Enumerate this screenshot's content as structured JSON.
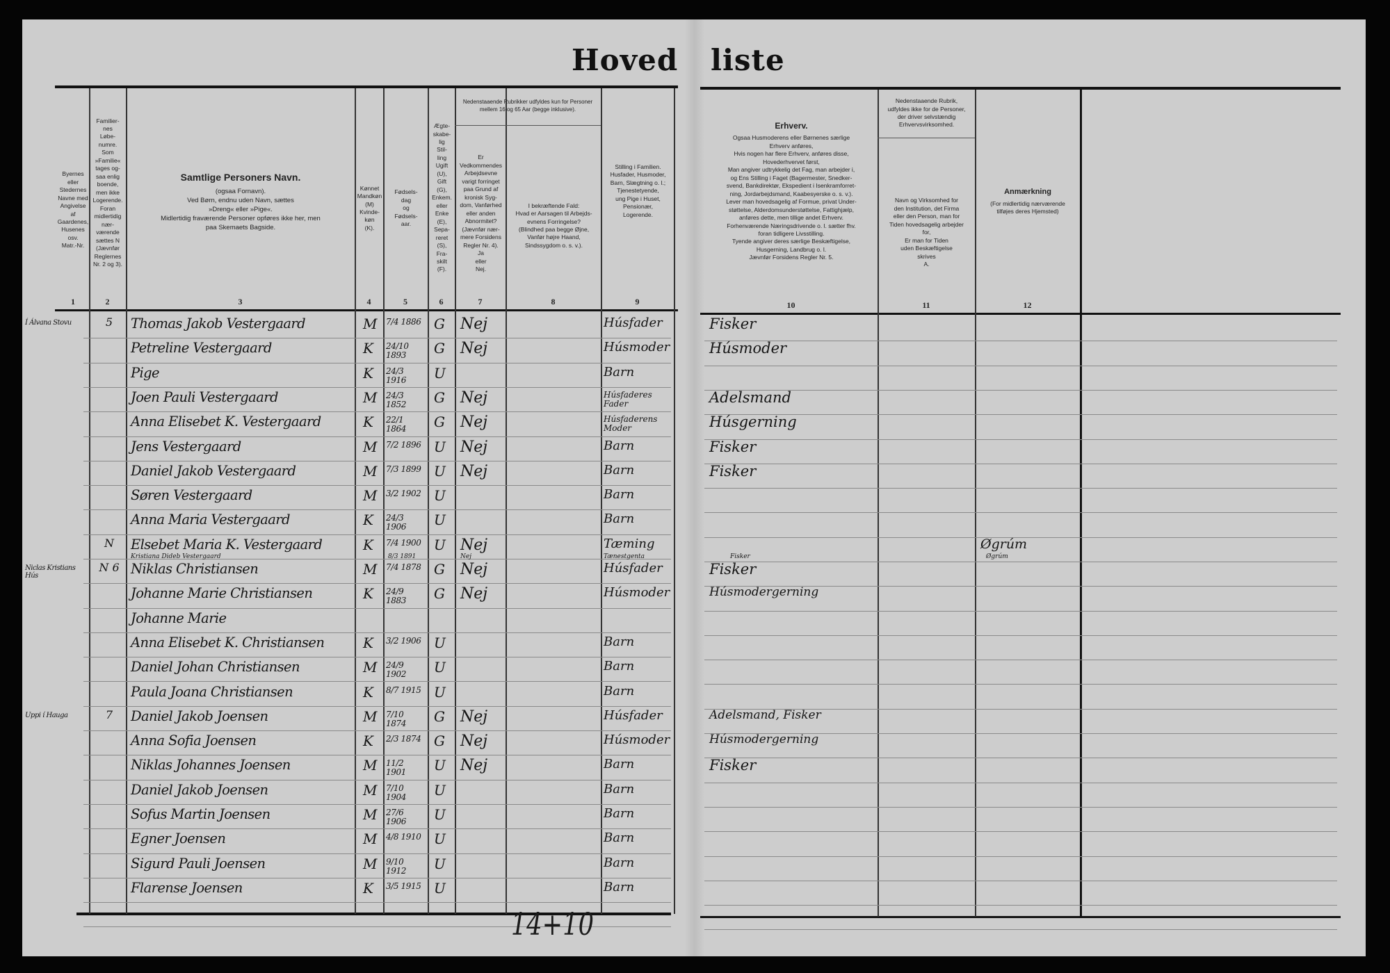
{
  "title": {
    "left": "Hoved",
    "right": "liste"
  },
  "headers": {
    "col1": [
      "Byernes",
      "eller",
      "Stedernes",
      "Navne med",
      "Angivelse",
      "af",
      "Gaardenes,",
      "Husenes osv.",
      "Matr.-Nr."
    ],
    "col2": [
      "Familier-",
      "nes",
      "Løbe-",
      "numre.",
      "Som",
      "»Familie«",
      "tages og-",
      "saa enlig",
      "boende,",
      "men ikke",
      "Logerende.",
      "Foran",
      "midlertidig",
      "nær-",
      "værende",
      "sættes N",
      "(Jævnfør",
      "Reglernes",
      "Nr. 2 og 3)."
    ],
    "col3_title": "Samtlige Personers Navn.",
    "col3_lines": [
      "(ogsaa Fornavn).",
      "Ved Børn, endnu uden Navn, sættes",
      "»Dreng« eller »Pige«.",
      "Midlertidig fraværende Personer opføres ikke her, men",
      "paa Skemaets Bagside."
    ],
    "col4": [
      "Kønnet",
      "Mandkøn",
      "(M)",
      "Kvinde-",
      "køn",
      "(K)."
    ],
    "col5": [
      "Fødsels-",
      "dag",
      "og",
      "Fødsels-",
      "aar."
    ],
    "col6": [
      "Ægte-",
      "skabe-",
      "lig",
      "Stil-",
      "ling",
      "Ugift",
      "(U),",
      "Gift",
      "(G),",
      "Enkem.",
      "eller",
      "Enke",
      "(E),",
      "Sepa-",
      "reret",
      "(S),",
      "Fra-",
      "skilt",
      "(F)."
    ],
    "col78_top": "Nedenstaaende Rubrikker udfyldes kun for Personer mellem 16 og 65 Aar (begge inklusive).",
    "col7": [
      "Er",
      "Vedkommendes",
      "Arbejdsevne",
      "varigt forringet",
      "paa Grund af",
      "kronisk Syg-",
      "dom, Vanførhed",
      "eller anden",
      "Abnormitet?",
      "(Jævnfør nær-",
      "mere Forsidens",
      "Regler Nr. 4).",
      "Ja",
      "eller",
      "Nej."
    ],
    "col8": [
      "I bekræftende Fald:",
      "Hvad er Aarsagen til Arbejds-",
      "evnens Forringelse?",
      "(Blindhed paa begge Øjne,",
      "Vanfør højre Haand,",
      "Sindssygdom o. s. v.)."
    ],
    "col9": [
      "Stilling i Familien.",
      "Husfader, Husmoder,",
      "Barn, Slægtning o. l.;",
      "Tjenestetyende,",
      "ung Pige i Huset,",
      "Pensionær,",
      "Logerende."
    ],
    "col10_title": "Erhverv.",
    "col10": [
      "Ogsaa Husmoderens eller Børnenes særlige",
      "Erhverv anføres,",
      "Hvis nogen har flere Erhverv, anføres disse,",
      "Hovederhvervet først,",
      "Man angiver udtrykkelig det Fag, man arbejder i,",
      "og Ens Stilling i Faget (Bagermester, Snedker-",
      "svend, Bankdirektør, Ekspedient i Isenkramforret-",
      "ning, Jordarbejdsmand, Kaabesyerske o. s. v.).",
      "Lever man hovedsagelig af Formue, privat Under-",
      "støttelse, Alderdomsunderstøttelse, Fattighjælp,",
      "anføres dette, men tillige andet Erhverv.",
      "Forhenværende Næringsdrivende o. l. sætter fhv.",
      "foran tidligere Livsstilling.",
      "Tyende angiver deres særlige Beskæftigelse,",
      "Husgerning, Landbrug o. l.",
      "Jævnfør Forsidens Regler Nr. 5."
    ],
    "col11_top": [
      "Nedenstaaende Rubrik,",
      "udfyldes ikke for de Personer,",
      "der driver selvstændig",
      "Erhvervsvirksomhed."
    ],
    "col11": [
      "Navn og Virksomhed for",
      "den Institution, det Firma",
      "eller den Person, man for",
      "Tiden hovedsagelig arbejder",
      "for,",
      "Er man for Tiden",
      "uden Beskæftigelse",
      "skrives",
      "A."
    ],
    "col12_title": "Anmærkning",
    "col12": [
      "(For midlertidig nærværende",
      "tilføjes deres Hjemsted)"
    ],
    "numbers": [
      "1",
      "2",
      "3",
      "4",
      "5",
      "6",
      "7",
      "8",
      "9",
      "10",
      "11",
      "12"
    ]
  },
  "rows": [
    {
      "place": "Í Álvana Stovu",
      "fam": "5",
      "name": "Thomas Jakob Vestergaard",
      "sex": "M",
      "born": "7/4 1886",
      "civ": "G",
      "able": "Nej",
      "role": "Húsfader",
      "job": "Fisker"
    },
    {
      "name": "Petreline Vestergaard",
      "sex": "K",
      "born": "24/10 1893",
      "civ": "G",
      "able": "Nej",
      "role": "Húsmoder",
      "job": "Húsmoder"
    },
    {
      "name": "Pige",
      "sex": "K",
      "born": "24/3 1916",
      "civ": "U",
      "role": "Barn"
    },
    {
      "name": "Joen Pauli Vestergaard",
      "sex": "M",
      "born": "24/3 1852",
      "civ": "G",
      "able": "Nej",
      "role": "Húsfaderes Fader",
      "job": "Adelsmand"
    },
    {
      "name": "Anna Elisebet K. Vestergaard",
      "sex": "K",
      "born": "22/1 1864",
      "civ": "G",
      "able": "Nej",
      "role": "Húsfaderens Moder",
      "job": "Húsgerning"
    },
    {
      "name": "Jens Vestergaard",
      "sex": "M",
      "born": "7/2 1896",
      "civ": "U",
      "able": "Nej",
      "role": "Barn",
      "job": "Fisker"
    },
    {
      "name": "Daniel Jakob Vestergaard",
      "sex": "M",
      "born": "7/3 1899",
      "civ": "U",
      "able": "Nej",
      "role": "Barn",
      "job": "Fisker"
    },
    {
      "name": "Søren Vestergaard",
      "sex": "M",
      "born": "3/2 1902",
      "civ": "U",
      "role": "Barn"
    },
    {
      "name": "Anna Maria Vestergaard",
      "sex": "K",
      "born": "24/3 1906",
      "civ": "U",
      "role": "Barn"
    },
    {
      "fam": "N",
      "name": "Elsebet Maria K. Vestergaard",
      "sex": "K",
      "born": "7/4 1900",
      "civ": "U",
      "able": "Nej",
      "role": "Tæming",
      "note": "Øgrúm",
      "sub": {
        "name": "Kristiana Dideb Vestergaard",
        "born": "8/3 1891",
        "able": "Nej",
        "role": "Tænestgenta",
        "note": "Øgrúm"
      }
    },
    {
      "place": "Niclas Kristians Hús",
      "fam": "N 6",
      "name": "Niklas Christiansen",
      "sex": "M",
      "born": "7/4 1878",
      "civ": "G",
      "able": "Nej",
      "role": "Húsfader",
      "job": "Fisker",
      "sub": {
        "job": "Fisker"
      }
    },
    {
      "name": "Johanne Marie Christiansen",
      "sex": "K",
      "born": "24/9 1883",
      "civ": "G",
      "able": "Nej",
      "role": "Húsmoder",
      "job": "Húsmodergerning"
    },
    {
      "name": "Johanne Marie"
    },
    {
      "name": "Anna Elisebet K. Christiansen",
      "sex": "K",
      "born": "3/2 1906",
      "civ": "U",
      "role": "Barn"
    },
    {
      "name": "Daniel Johan Christiansen",
      "sex": "M",
      "born": "24/9 1902",
      "civ": "U",
      "role": "Barn"
    },
    {
      "name": "Paula Joana Christiansen",
      "sex": "K",
      "born": "8/7 1915",
      "civ": "U",
      "role": "Barn"
    },
    {
      "place": "Uppi í Hauga",
      "fam": "7",
      "name": "Daniel Jakob Joensen",
      "sex": "M",
      "born": "7/10 1874",
      "civ": "G",
      "able": "Nej",
      "role": "Húsfader",
      "job": "Adelsmand, Fisker"
    },
    {
      "name": "Anna Sofia Joensen",
      "sex": "K",
      "born": "2/3 1874",
      "civ": "G",
      "able": "Nej",
      "role": "Húsmoder",
      "job": "Húsmodergerning"
    },
    {
      "name": "Niklas Johannes Joensen",
      "sex": "M",
      "born": "11/2 1901",
      "civ": "U",
      "able": "Nej",
      "role": "Barn",
      "job": "Fisker"
    },
    {
      "name": "Daniel Jakob Joensen",
      "sex": "M",
      "born": "7/10 1904",
      "civ": "U",
      "role": "Barn"
    },
    {
      "name": "Sofus Martin Joensen",
      "sex": "M",
      "born": "27/6 1906",
      "civ": "U",
      "role": "Barn"
    },
    {
      "name": "Egner Joensen",
      "sex": "M",
      "born": "4/8 1910",
      "civ": "U",
      "role": "Barn"
    },
    {
      "name": "Sigurd Pauli Joensen",
      "sex": "M",
      "born": "9/10 1912",
      "civ": "U",
      "role": "Barn"
    },
    {
      "name": "Flarense Joensen",
      "sex": "K",
      "born": "3/5 1915",
      "civ": "U",
      "role": "Barn"
    }
  ],
  "footer_tally": "14+10"
}
